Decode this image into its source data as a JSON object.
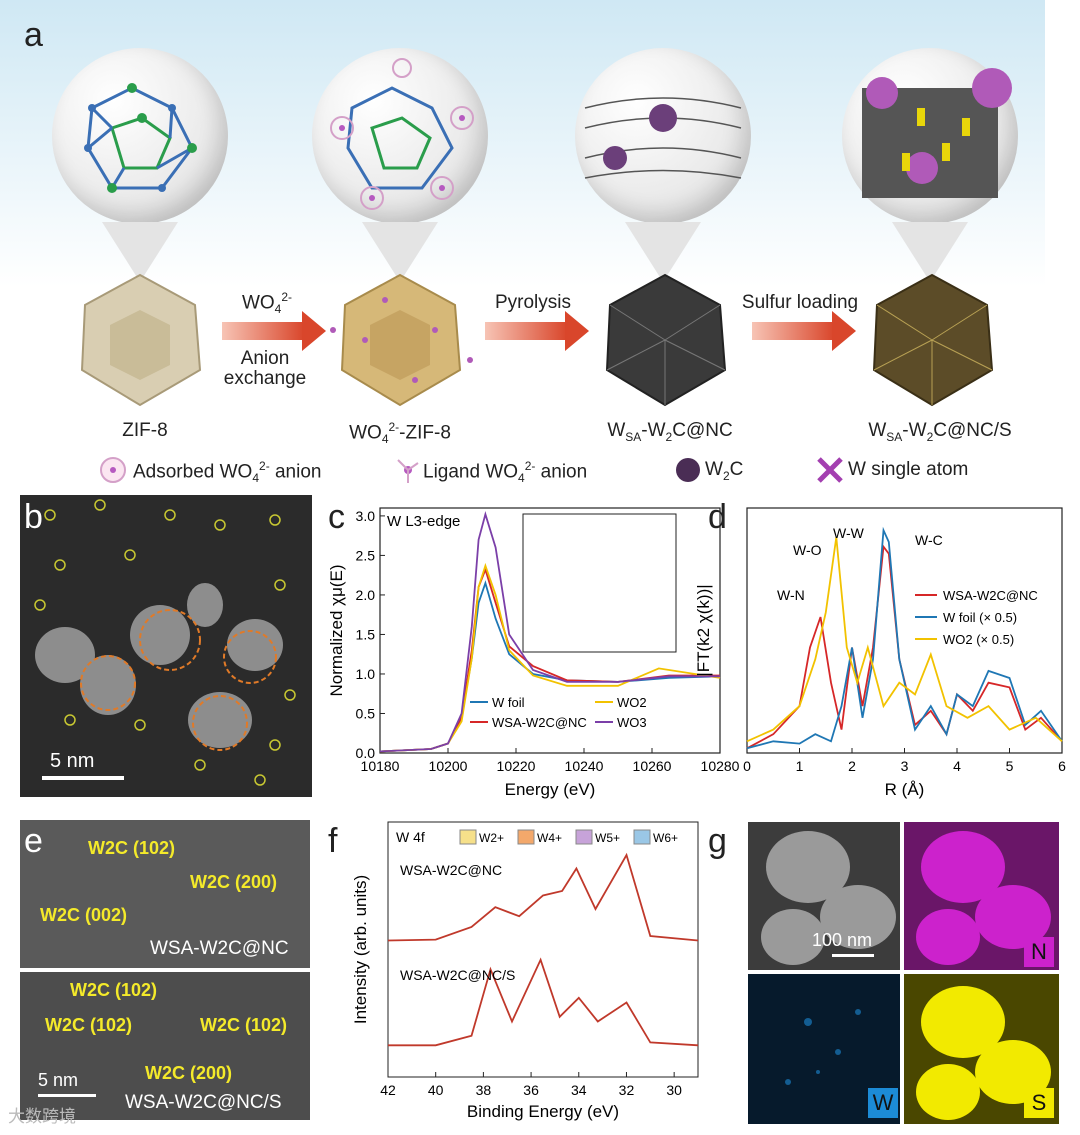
{
  "panels": {
    "a": "a",
    "b": "b",
    "c": "c",
    "d": "d",
    "e": "e",
    "f": "f",
    "g": "g"
  },
  "scheme": {
    "arrow1_top": "WO",
    "arrow1_top_sup": "2-",
    "arrow1_top_sub": "4",
    "arrow1_bottom1": "Anion",
    "arrow1_bottom2": "exchange",
    "arrow2": "Pyrolysis",
    "arrow3": "Sulfur loading",
    "stage1": "ZIF-8",
    "stage2_a": "WO",
    "stage2_sub": "4",
    "stage2_sup": "2-",
    "stage2_b": "-ZIF-8",
    "stage3_a": "W",
    "stage3_sub1": "SA",
    "stage3_b": "-W",
    "stage3_sub2": "2",
    "stage3_c": "C@NC",
    "stage4_c": "C@NC/S",
    "legend1_a": "Adsorbed WO",
    "legend1_sub": "4",
    "legend1_sup": "2-",
    "legend1_b": " anion",
    "legend2_a": "Ligand WO",
    "legend2_b": " anion",
    "legend3_a": "W",
    "legend3_sub": "2",
    "legend3_b": "C",
    "legend4": "W single atom"
  },
  "panel_b": {
    "scale": "5 nm"
  },
  "panel_e": {
    "top_labels": [
      "W2C (102)",
      "W2C (200)",
      "W2C (002)"
    ],
    "top_sample": "WSA-W2C@NC",
    "bottom_labels": [
      "W2C (102)",
      "W2C (102)",
      "W2C (102)",
      "W2C (200)"
    ],
    "bottom_sample": "WSA-W2C@NC/S",
    "scale": "5 nm"
  },
  "panel_g": {
    "scale": "100 nm",
    "maps": [
      "N",
      "W",
      "S"
    ],
    "colors": {
      "N": "#cc22cc",
      "W": "#1c8bd6",
      "S": "#f2ea00"
    }
  },
  "watermark": "大数跨境",
  "chart_data": [
    {
      "type": "line",
      "panel": "c",
      "annotation": "W L3-edge",
      "xlabel": "Energy (eV)",
      "ylabel": "Normalized χμ(E)",
      "xlim": [
        10180,
        10280
      ],
      "ylim": [
        0.0,
        3.1
      ],
      "xticks": [
        10180,
        10200,
        10220,
        10240,
        10260,
        10280
      ],
      "yticks": [
        0.0,
        0.5,
        1.0,
        1.5,
        2.0,
        2.5,
        3.0
      ],
      "series": [
        {
          "name": "W foil",
          "color": "#1f77b4",
          "x": [
            10180,
            10195,
            10200,
            10204,
            10207,
            10209,
            10211,
            10214,
            10218,
            10225,
            10235,
            10250,
            10265,
            10280
          ],
          "y": [
            0.02,
            0.05,
            0.12,
            0.45,
            1.2,
            1.9,
            2.15,
            1.7,
            1.25,
            1.0,
            0.92,
            0.9,
            0.95,
            0.97
          ]
        },
        {
          "name": "WSA-W2C@NC",
          "color": "#d62728",
          "x": [
            10180,
            10195,
            10200,
            10204,
            10207,
            10209,
            10211,
            10214,
            10218,
            10225,
            10235,
            10250,
            10265,
            10280
          ],
          "y": [
            0.02,
            0.05,
            0.12,
            0.45,
            1.3,
            2.1,
            2.32,
            1.9,
            1.35,
            1.1,
            0.92,
            0.9,
            0.98,
            0.98
          ]
        },
        {
          "name": "WO2",
          "color": "#f2c200",
          "x": [
            10180,
            10195,
            10200,
            10204,
            10207,
            10209,
            10211,
            10214,
            10218,
            10225,
            10235,
            10250,
            10262,
            10280
          ],
          "y": [
            0.02,
            0.05,
            0.12,
            0.4,
            1.2,
            2.1,
            2.37,
            2.0,
            1.3,
            0.98,
            0.85,
            0.85,
            1.07,
            0.95
          ]
        },
        {
          "name": "WO3",
          "color": "#7b3fa8",
          "x": [
            10180,
            10195,
            10200,
            10204,
            10207,
            10209,
            10211,
            10214,
            10218,
            10225,
            10235,
            10250,
            10265,
            10280
          ],
          "y": [
            0.02,
            0.05,
            0.12,
            0.5,
            1.6,
            2.7,
            3.02,
            2.6,
            1.5,
            1.05,
            0.9,
            0.9,
            0.97,
            0.97
          ]
        }
      ],
      "legend": [
        "W foil",
        "WSA-W2C@NC",
        "WO2",
        "WO3"
      ]
    },
    {
      "type": "line",
      "panel": "d",
      "xlabel": "R (Å)",
      "ylabel": "|FT(k2 χ(k))|",
      "xlim": [
        0,
        6
      ],
      "xticks": [
        0,
        1,
        2,
        3,
        4,
        5,
        6
      ],
      "annotations": [
        "W-N",
        "W-O",
        "W-W",
        "W-C"
      ],
      "legend": [
        "WSA-W2C@NC",
        "W foil (× 0.5)",
        "WO2 (× 0.5)"
      ],
      "series": [
        {
          "name": "WSA-W2C@NC",
          "color": "#d62728",
          "x": [
            0,
            0.5,
            1.0,
            1.2,
            1.4,
            1.6,
            1.8,
            2.0,
            2.2,
            2.4,
            2.6,
            2.7,
            2.9,
            3.2,
            3.5,
            3.8,
            4.0,
            4.3,
            4.6,
            5.0,
            5.3,
            5.6,
            6.0
          ],
          "y": [
            0.02,
            0.08,
            0.2,
            0.45,
            0.58,
            0.3,
            0.1,
            0.45,
            0.2,
            0.45,
            0.88,
            0.85,
            0.4,
            0.12,
            0.18,
            0.08,
            0.25,
            0.18,
            0.3,
            0.28,
            0.1,
            0.15,
            0.05
          ]
        },
        {
          "name": "W foil (× 0.5)",
          "color": "#1f77b4",
          "x": [
            0,
            0.5,
            1.0,
            1.3,
            1.6,
            1.8,
            2.0,
            2.2,
            2.4,
            2.6,
            2.7,
            2.9,
            3.2,
            3.5,
            3.8,
            4.0,
            4.3,
            4.6,
            5.0,
            5.3,
            5.6,
            6.0
          ],
          "y": [
            0.02,
            0.05,
            0.04,
            0.08,
            0.05,
            0.2,
            0.45,
            0.15,
            0.4,
            0.95,
            0.9,
            0.4,
            0.1,
            0.2,
            0.08,
            0.25,
            0.2,
            0.35,
            0.32,
            0.12,
            0.18,
            0.05
          ]
        },
        {
          "name": "WO2 (× 0.5)",
          "color": "#f2c200",
          "x": [
            0,
            0.5,
            1.0,
            1.3,
            1.5,
            1.7,
            1.9,
            2.1,
            2.3,
            2.6,
            2.9,
            3.2,
            3.5,
            3.8,
            4.2,
            4.6,
            5.0,
            5.5,
            6.0
          ],
          "y": [
            0.05,
            0.1,
            0.2,
            0.4,
            0.6,
            0.92,
            0.45,
            0.3,
            0.45,
            0.2,
            0.3,
            0.25,
            0.42,
            0.2,
            0.15,
            0.2,
            0.1,
            0.15,
            0.05
          ]
        }
      ]
    },
    {
      "type": "line",
      "panel": "f",
      "annotation": "W 4f",
      "xlabel": "Binding Energy (eV)",
      "ylabel": "Intensity (arb. units)",
      "xlim": [
        42,
        29
      ],
      "xticks": [
        42,
        40,
        38,
        36,
        34,
        32,
        30
      ],
      "legend": [
        "W2+",
        "W4+",
        "W5+",
        "W6+"
      ],
      "legend_colors": [
        "#f6e08a",
        "#f3a86b",
        "#c7a3d9",
        "#9ac7e6"
      ],
      "sample_labels": [
        "WSA-W2C@NC",
        "WSA-W2C@NC/S"
      ],
      "series": [
        {
          "name": "WSA-W2C@NC",
          "color": "#c0392b",
          "x": [
            42,
            40,
            38.5,
            37.5,
            36.5,
            35.5,
            34.7,
            34.1,
            33.3,
            32.0,
            31.0,
            29
          ],
          "y": [
            0.05,
            0.06,
            0.2,
            0.42,
            0.32,
            0.55,
            0.6,
            0.85,
            0.4,
            1.0,
            0.1,
            0.05
          ]
        },
        {
          "name": "WSA-W2C@NC/S",
          "color": "#c0392b",
          "x": [
            42,
            40,
            38.5,
            37.7,
            36.8,
            35.6,
            34.8,
            34.0,
            33.2,
            32.0,
            31.0,
            29
          ],
          "y": [
            0.05,
            0.05,
            0.15,
            0.85,
            0.3,
            0.95,
            0.35,
            0.55,
            0.3,
            0.5,
            0.08,
            0.05
          ]
        }
      ]
    }
  ]
}
